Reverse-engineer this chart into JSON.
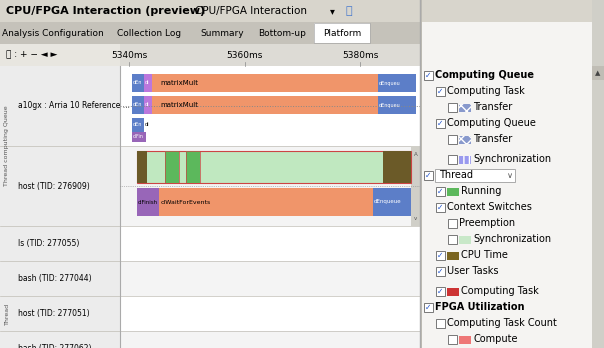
{
  "title": "CPU/FPGA Interaction (preview)",
  "subtitle": "CPU/FPGA Interaction",
  "tabs": [
    "Analysis Configuration",
    "Collection Log",
    "Summary",
    "Bottom-up",
    "Platform"
  ],
  "active_tab": "Platform",
  "time_labels": [
    "5340ms",
    "5360ms",
    "5380ms"
  ],
  "bg_gray": "#d8d5cc",
  "tab_bar_bg": "#c5c2ba",
  "active_tab_bg": "#ffffff",
  "toolbar_bg": "#e8e6e0",
  "content_bg": "#ffffff",
  "row_alt_bg": "#f4f4f4",
  "label_col_bg": "#ececec",
  "separator_color": "#c0bdb5",
  "orange_color": "#f0956a",
  "blue_color": "#5c7ec8",
  "purple_color": "#9866b8",
  "green_light": "#c0e8c0",
  "green_dark": "#5cb85c",
  "olive_color": "#6b5a28",
  "red_fpga": "#f06060",
  "sidebar_bg": "#f5f4f2",
  "sidebar_border": "#c0bdb5",
  "icon_hatch_blue": "#8899cc",
  "icon_vline_blue": "#9999ee",
  "icon_green": "#5cb85c",
  "icon_green_light": "#c8e8c8",
  "icon_olive": "#7a6520",
  "icon_red": "#cc3333",
  "icon_pink": "#ee7777",
  "icon_yellow": "#f0e030",
  "icon_blue": "#5c7ec8"
}
